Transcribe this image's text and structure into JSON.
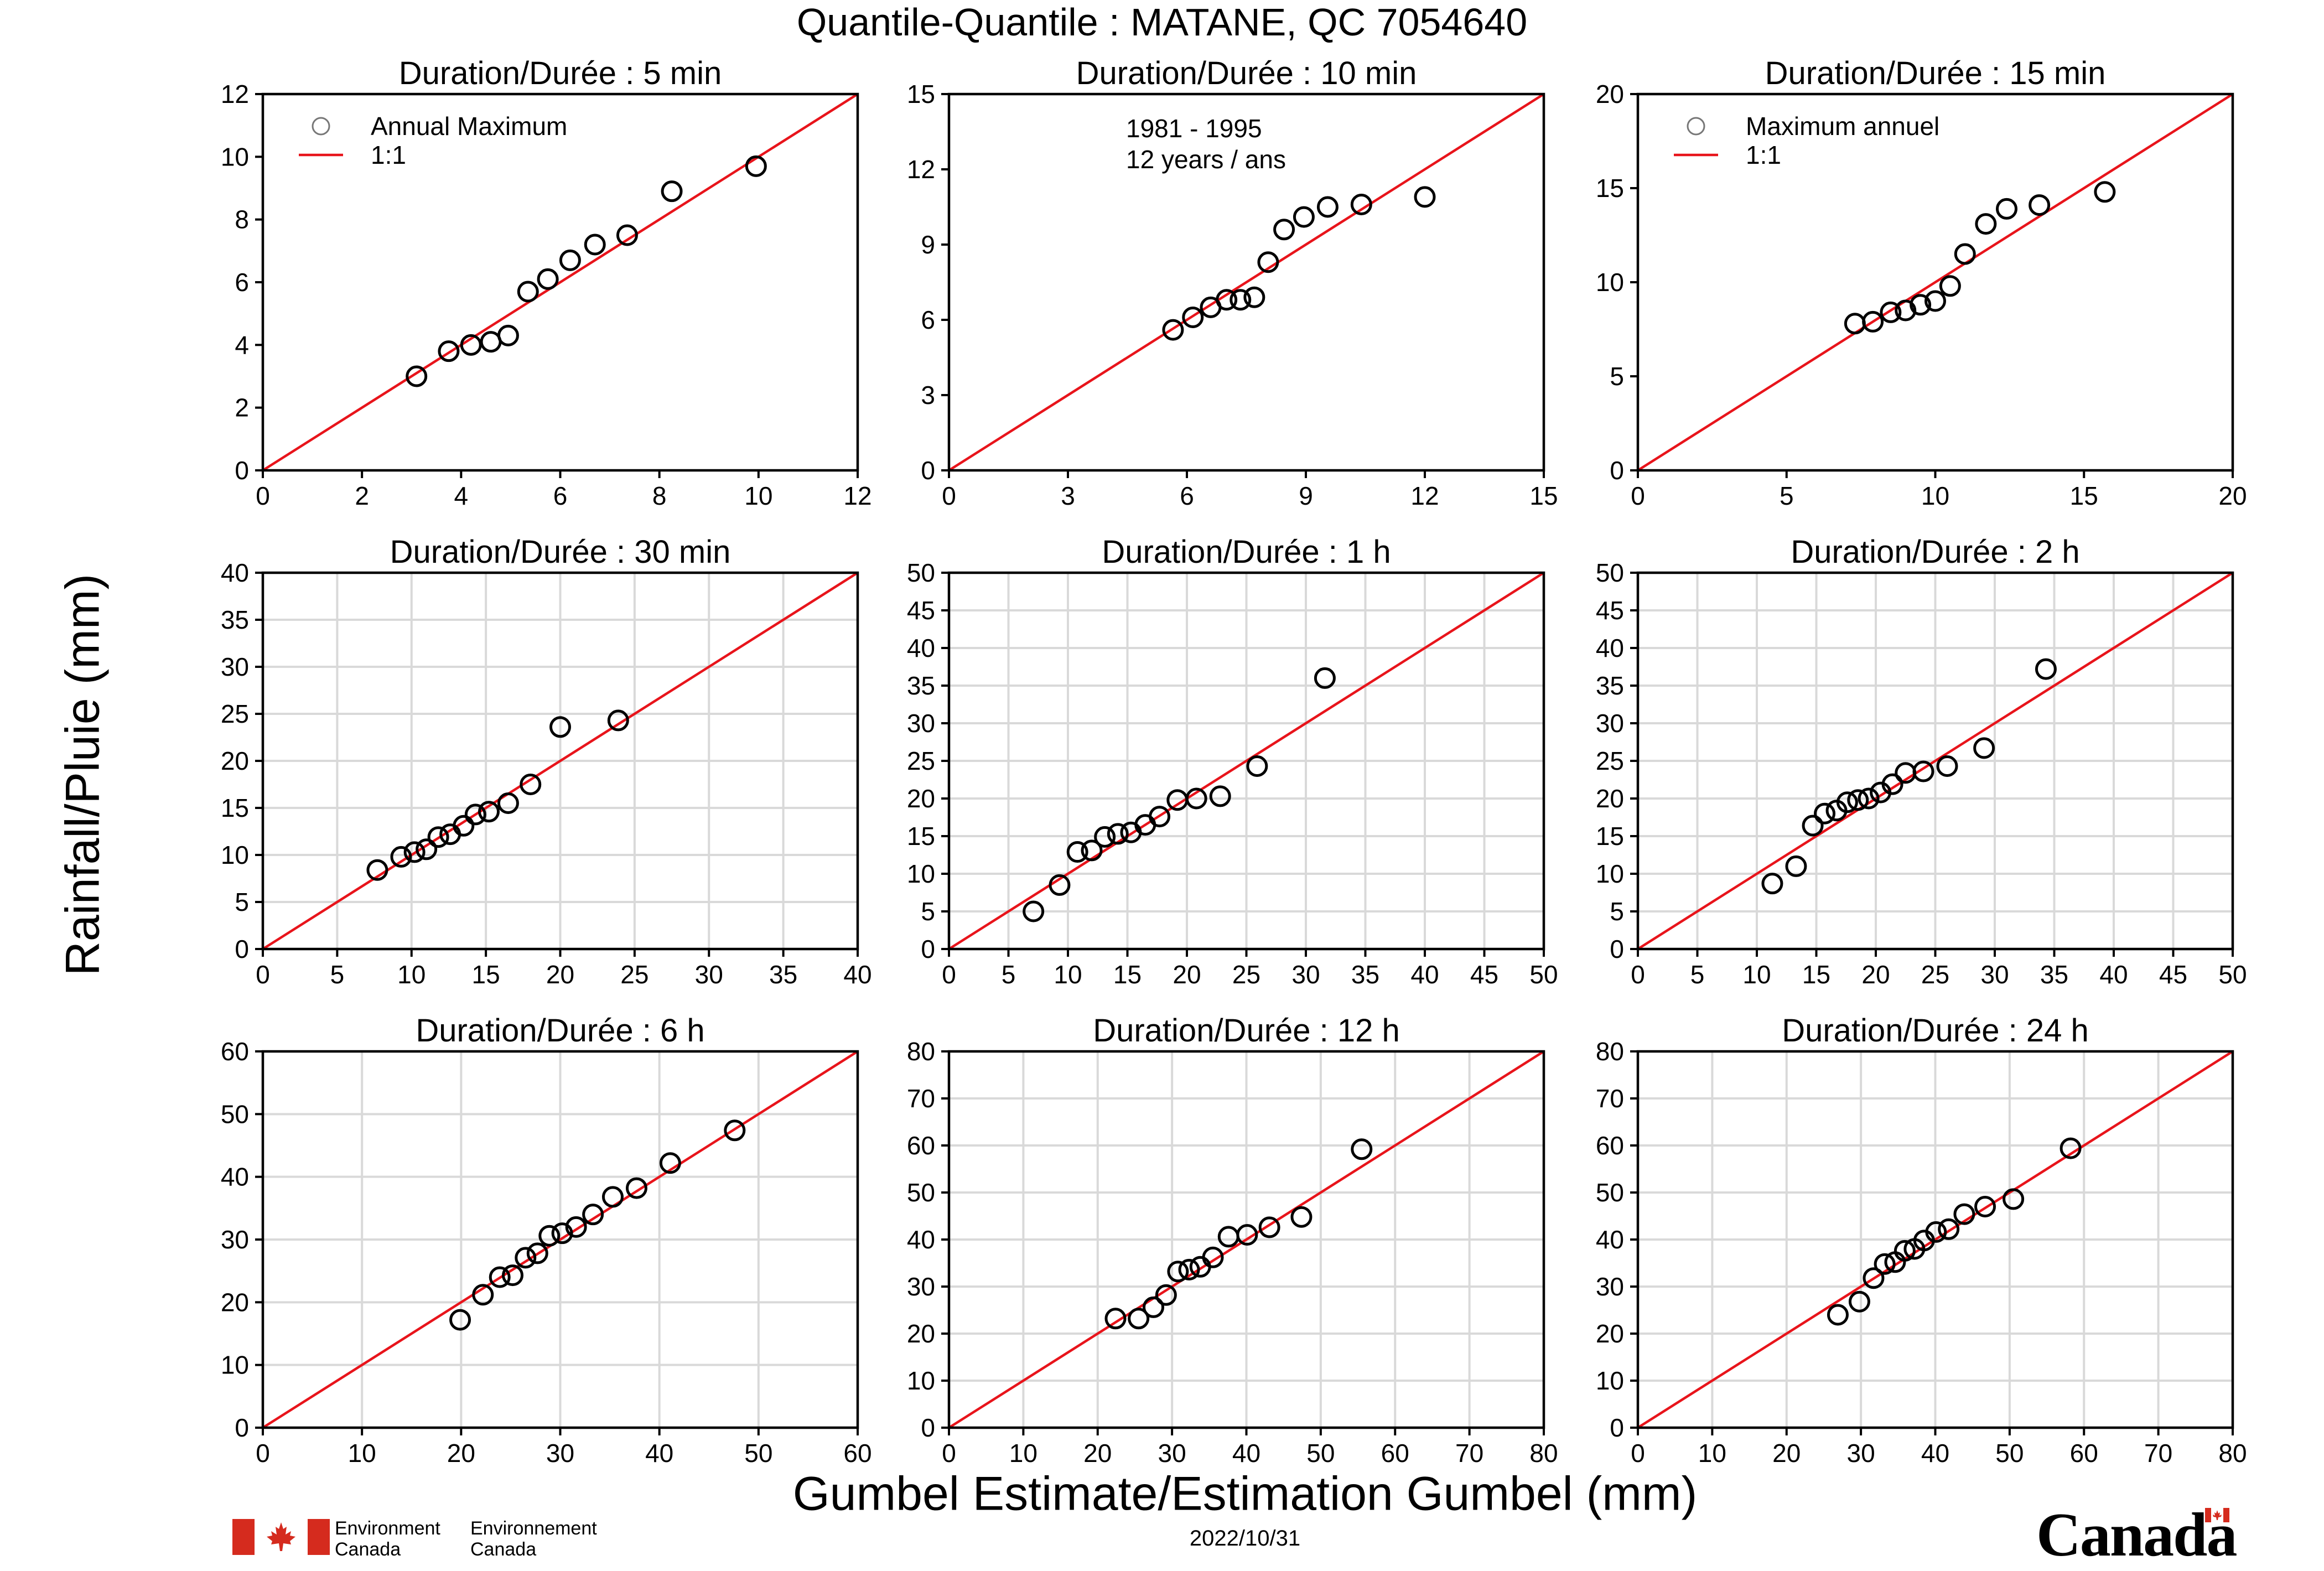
{
  "figure_title": "Quantile-Quantile : MATANE, QC  7054640",
  "ylabel": "Rainfall/Pluie (mm)",
  "xlabel": "Gumbel Estimate/Estimation Gumbel (mm)",
  "date": "2022/10/31",
  "footer": {
    "dept_en_line1": "Environment",
    "dept_en_line2": "Canada",
    "dept_fr_line1": "Environnement",
    "dept_fr_line2": "Canada",
    "wordmark": "Canada"
  },
  "colors": {
    "line": "#e8141b",
    "marker": "#000000",
    "grid": "#d9d9d9",
    "flag": "#d52b1e"
  },
  "chart_data": [
    {
      "type": "scatter",
      "title": "Duration/Durée : 5 min",
      "xlim": [
        0,
        12
      ],
      "ylim": [
        0,
        12
      ],
      "xticks": [
        0,
        2,
        4,
        6,
        8,
        10,
        12
      ],
      "yticks": [
        0,
        2,
        4,
        6,
        8,
        10,
        12
      ],
      "grid": false,
      "legend": {
        "placement": "top-left",
        "entries": [
          "Annual Maximum",
          "1:1"
        ]
      },
      "x": [
        3.1,
        3.75,
        4.2,
        4.6,
        4.95,
        5.35,
        5.75,
        6.2,
        6.7,
        7.35,
        8.25,
        9.95
      ],
      "y": [
        3.0,
        3.8,
        4.0,
        4.1,
        4.3,
        5.7,
        6.1,
        6.7,
        7.2,
        7.5,
        8.9,
        9.7
      ]
    },
    {
      "type": "scatter",
      "title": "Duration/Durée : 10 min",
      "xlim": [
        0,
        15
      ],
      "ylim": [
        0,
        15
      ],
      "xticks": [
        0,
        3,
        6,
        9,
        12,
        15
      ],
      "yticks": [
        0,
        3,
        6,
        9,
        12,
        15
      ],
      "grid": false,
      "annotations": [
        "1981 - 1995",
        "12 years / ans"
      ],
      "x": [
        5.65,
        6.15,
        6.6,
        7.0,
        7.35,
        7.7,
        8.05,
        8.45,
        8.95,
        9.55,
        10.4,
        12.0
      ],
      "y": [
        5.6,
        6.1,
        6.5,
        6.8,
        6.8,
        6.9,
        8.3,
        9.6,
        10.1,
        10.5,
        10.6,
        10.9
      ]
    },
    {
      "type": "scatter",
      "title": "Duration/Durée : 15 min",
      "xlim": [
        0,
        20
      ],
      "ylim": [
        0,
        20
      ],
      "xticks": [
        0,
        5,
        10,
        15,
        20
      ],
      "yticks": [
        0,
        5,
        10,
        15,
        20
      ],
      "grid": false,
      "legend": {
        "placement": "top-left",
        "entries": [
          "Maximum annuel",
          "1:1"
        ]
      },
      "x": [
        7.3,
        7.9,
        8.5,
        9.0,
        9.5,
        10.0,
        10.5,
        11.0,
        11.7,
        12.4,
        13.5,
        15.7
      ],
      "y": [
        7.8,
        7.9,
        8.4,
        8.5,
        8.8,
        9.0,
        9.8,
        11.5,
        13.1,
        13.9,
        14.1,
        14.8
      ]
    },
    {
      "type": "scatter",
      "title": "Duration/Durée : 30 min",
      "xlim": [
        0,
        40
      ],
      "ylim": [
        0,
        40
      ],
      "xticks": [
        0,
        5,
        10,
        15,
        20,
        25,
        30,
        35,
        40
      ],
      "yticks": [
        0,
        5,
        10,
        15,
        20,
        25,
        30,
        35,
        40
      ],
      "grid": true,
      "x": [
        7.7,
        9.3,
        10.2,
        11.0,
        11.8,
        12.6,
        13.5,
        14.3,
        15.2,
        16.5,
        18.0,
        20.0,
        23.9
      ],
      "y": [
        8.4,
        9.8,
        10.3,
        10.6,
        11.9,
        12.2,
        13.1,
        14.3,
        14.6,
        15.5,
        17.5,
        23.6,
        24.3
      ]
    },
    {
      "type": "scatter",
      "title": "Duration/Durée : 1 h",
      "xlim": [
        0,
        50
      ],
      "ylim": [
        0,
        50
      ],
      "xticks": [
        0,
        5,
        10,
        15,
        20,
        25,
        30,
        35,
        40,
        45,
        50
      ],
      "yticks": [
        0,
        5,
        10,
        15,
        20,
        25,
        30,
        35,
        40,
        45,
        50
      ],
      "grid": true,
      "x": [
        7.1,
        9.3,
        10.8,
        12.0,
        13.1,
        14.2,
        15.3,
        16.5,
        17.7,
        19.2,
        20.8,
        22.8,
        25.9,
        31.6
      ],
      "y": [
        5.0,
        8.5,
        12.9,
        13.1,
        14.9,
        15.3,
        15.5,
        16.5,
        17.6,
        19.8,
        20.0,
        20.3,
        24.3,
        36.0
      ]
    },
    {
      "type": "scatter",
      "title": "Duration/Durée : 2 h",
      "xlim": [
        0,
        50
      ],
      "ylim": [
        0,
        50
      ],
      "xticks": [
        0,
        5,
        10,
        15,
        20,
        25,
        30,
        35,
        40,
        45,
        50
      ],
      "yticks": [
        0,
        5,
        10,
        15,
        20,
        25,
        30,
        35,
        40,
        45,
        50
      ],
      "grid": true,
      "x": [
        11.3,
        13.3,
        14.7,
        15.7,
        16.7,
        17.6,
        18.5,
        19.4,
        20.4,
        21.4,
        22.5,
        24.0,
        26.0,
        29.1,
        34.3
      ],
      "y": [
        8.7,
        11.0,
        16.4,
        18.0,
        18.4,
        19.5,
        19.8,
        20.0,
        20.8,
        21.9,
        23.4,
        23.6,
        24.3,
        26.7,
        37.2
      ]
    },
    {
      "type": "scatter",
      "title": "Duration/Durée : 6 h",
      "xlim": [
        0,
        60
      ],
      "ylim": [
        0,
        60
      ],
      "xticks": [
        0,
        10,
        20,
        30,
        40,
        50,
        60
      ],
      "yticks": [
        0,
        10,
        20,
        30,
        40,
        50,
        60
      ],
      "grid": true,
      "x": [
        19.9,
        22.2,
        23.9,
        25.2,
        26.5,
        27.7,
        28.9,
        30.2,
        31.6,
        33.3,
        35.3,
        37.7,
        41.1,
        47.6
      ],
      "y": [
        17.2,
        21.2,
        24.0,
        24.3,
        27.1,
        27.8,
        30.6,
        31.0,
        32.0,
        34.0,
        36.8,
        38.2,
        42.2,
        47.4
      ]
    },
    {
      "type": "scatter",
      "title": "Duration/Durée : 12 h",
      "xlim": [
        0,
        80
      ],
      "ylim": [
        0,
        80
      ],
      "xticks": [
        0,
        10,
        20,
        30,
        40,
        50,
        60,
        70,
        80
      ],
      "yticks": [
        0,
        10,
        20,
        30,
        40,
        50,
        60,
        70,
        80
      ],
      "grid": true,
      "x": [
        22.4,
        25.5,
        27.5,
        29.2,
        30.8,
        32.3,
        33.8,
        35.5,
        37.6,
        40.1,
        43.1,
        47.4,
        55.5
      ],
      "y": [
        23.2,
        23.2,
        25.6,
        28.2,
        33.2,
        33.6,
        34.2,
        36.2,
        40.6,
        41.0,
        42.6,
        44.8,
        59.2
      ]
    },
    {
      "type": "scatter",
      "title": "Duration/Durée : 24 h",
      "xlim": [
        0,
        80
      ],
      "ylim": [
        0,
        80
      ],
      "xticks": [
        0,
        10,
        20,
        30,
        40,
        50,
        60,
        70,
        80
      ],
      "yticks": [
        0,
        10,
        20,
        30,
        40,
        50,
        60,
        70,
        80
      ],
      "grid": true,
      "x": [
        26.9,
        29.8,
        31.7,
        33.2,
        34.6,
        35.9,
        37.2,
        38.5,
        40.1,
        41.8,
        43.9,
        46.7,
        50.5,
        58.2
      ],
      "y": [
        24.0,
        26.8,
        31.8,
        34.8,
        35.2,
        37.6,
        38.0,
        39.8,
        41.6,
        42.2,
        45.4,
        47.0,
        48.6,
        59.4
      ]
    }
  ]
}
